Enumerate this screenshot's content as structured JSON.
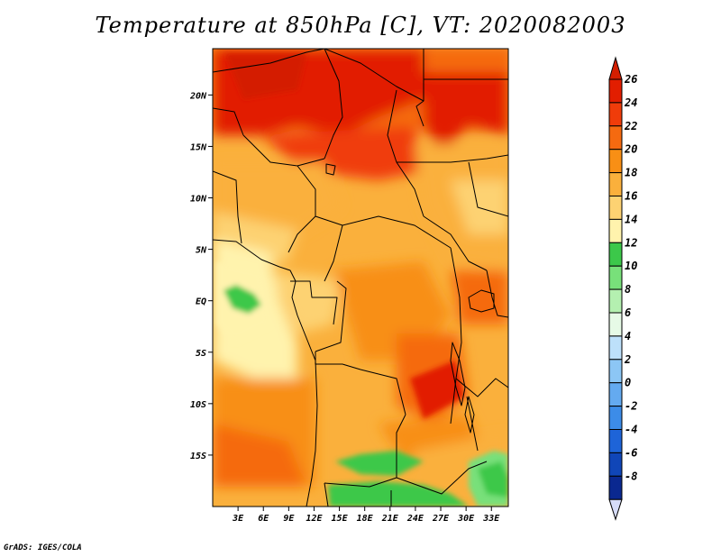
{
  "title": "Temperature at 850hPa [C], VT: 2020082003",
  "credit": "GrADS: IGES/COLA",
  "map": {
    "lat_ticks": [
      {
        "lat": 20,
        "label": "20N"
      },
      {
        "lat": 15,
        "label": "15N"
      },
      {
        "lat": 10,
        "label": "10N"
      },
      {
        "lat": 5,
        "label": "5N"
      },
      {
        "lat": 0,
        "label": "EQ"
      },
      {
        "lat": -5,
        "label": "5S"
      },
      {
        "lat": -10,
        "label": "10S"
      },
      {
        "lat": -15,
        "label": "15S"
      }
    ],
    "lon_ticks": [
      {
        "lon": 3,
        "label": "3E"
      },
      {
        "lon": 6,
        "label": "6E"
      },
      {
        "lon": 9,
        "label": "9E"
      },
      {
        "lon": 12,
        "label": "12E"
      },
      {
        "lon": 15,
        "label": "15E"
      },
      {
        "lon": 18,
        "label": "18E"
      },
      {
        "lon": 21,
        "label": "21E"
      },
      {
        "lon": 24,
        "label": "24E"
      },
      {
        "lon": 27,
        "label": "27E"
      },
      {
        "lon": 30,
        "label": "30E"
      },
      {
        "lon": 33,
        "label": "33E"
      }
    ],
    "lon_range": [
      0,
      35
    ],
    "lat_range": [
      -20,
      24.5
    ]
  },
  "colorbar": {
    "levels": [
      {
        "label": "26",
        "color": "#e21e00"
      },
      {
        "label": "24",
        "color": "#f03c0a"
      },
      {
        "label": "22",
        "color": "#f56a10"
      },
      {
        "label": "20",
        "color": "#f88f15"
      },
      {
        "label": "18",
        "color": "#fab03c"
      },
      {
        "label": "16",
        "color": "#fdd272"
      },
      {
        "label": "14",
        "color": "#fff3ad"
      },
      {
        "label": "12",
        "color": "#3cc84a"
      },
      {
        "label": "10",
        "color": "#78e07a"
      },
      {
        "label": "8",
        "color": "#b4f0b0"
      },
      {
        "label": "6",
        "color": "#e6fae6"
      },
      {
        "label": "4",
        "color": "#bde0fa"
      },
      {
        "label": "2",
        "color": "#8cc6f5"
      },
      {
        "label": "0",
        "color": "#64aaf0"
      },
      {
        "label": "-2",
        "color": "#3c8ce8"
      },
      {
        "label": "-4",
        "color": "#1e64d8"
      },
      {
        "label": "-6",
        "color": "#1046b8"
      },
      {
        "label": "-8",
        "color": "#0a2890"
      }
    ],
    "top_arrow_color": "#d41e00",
    "bottom_arrow_color": "#d6dcf8"
  }
}
